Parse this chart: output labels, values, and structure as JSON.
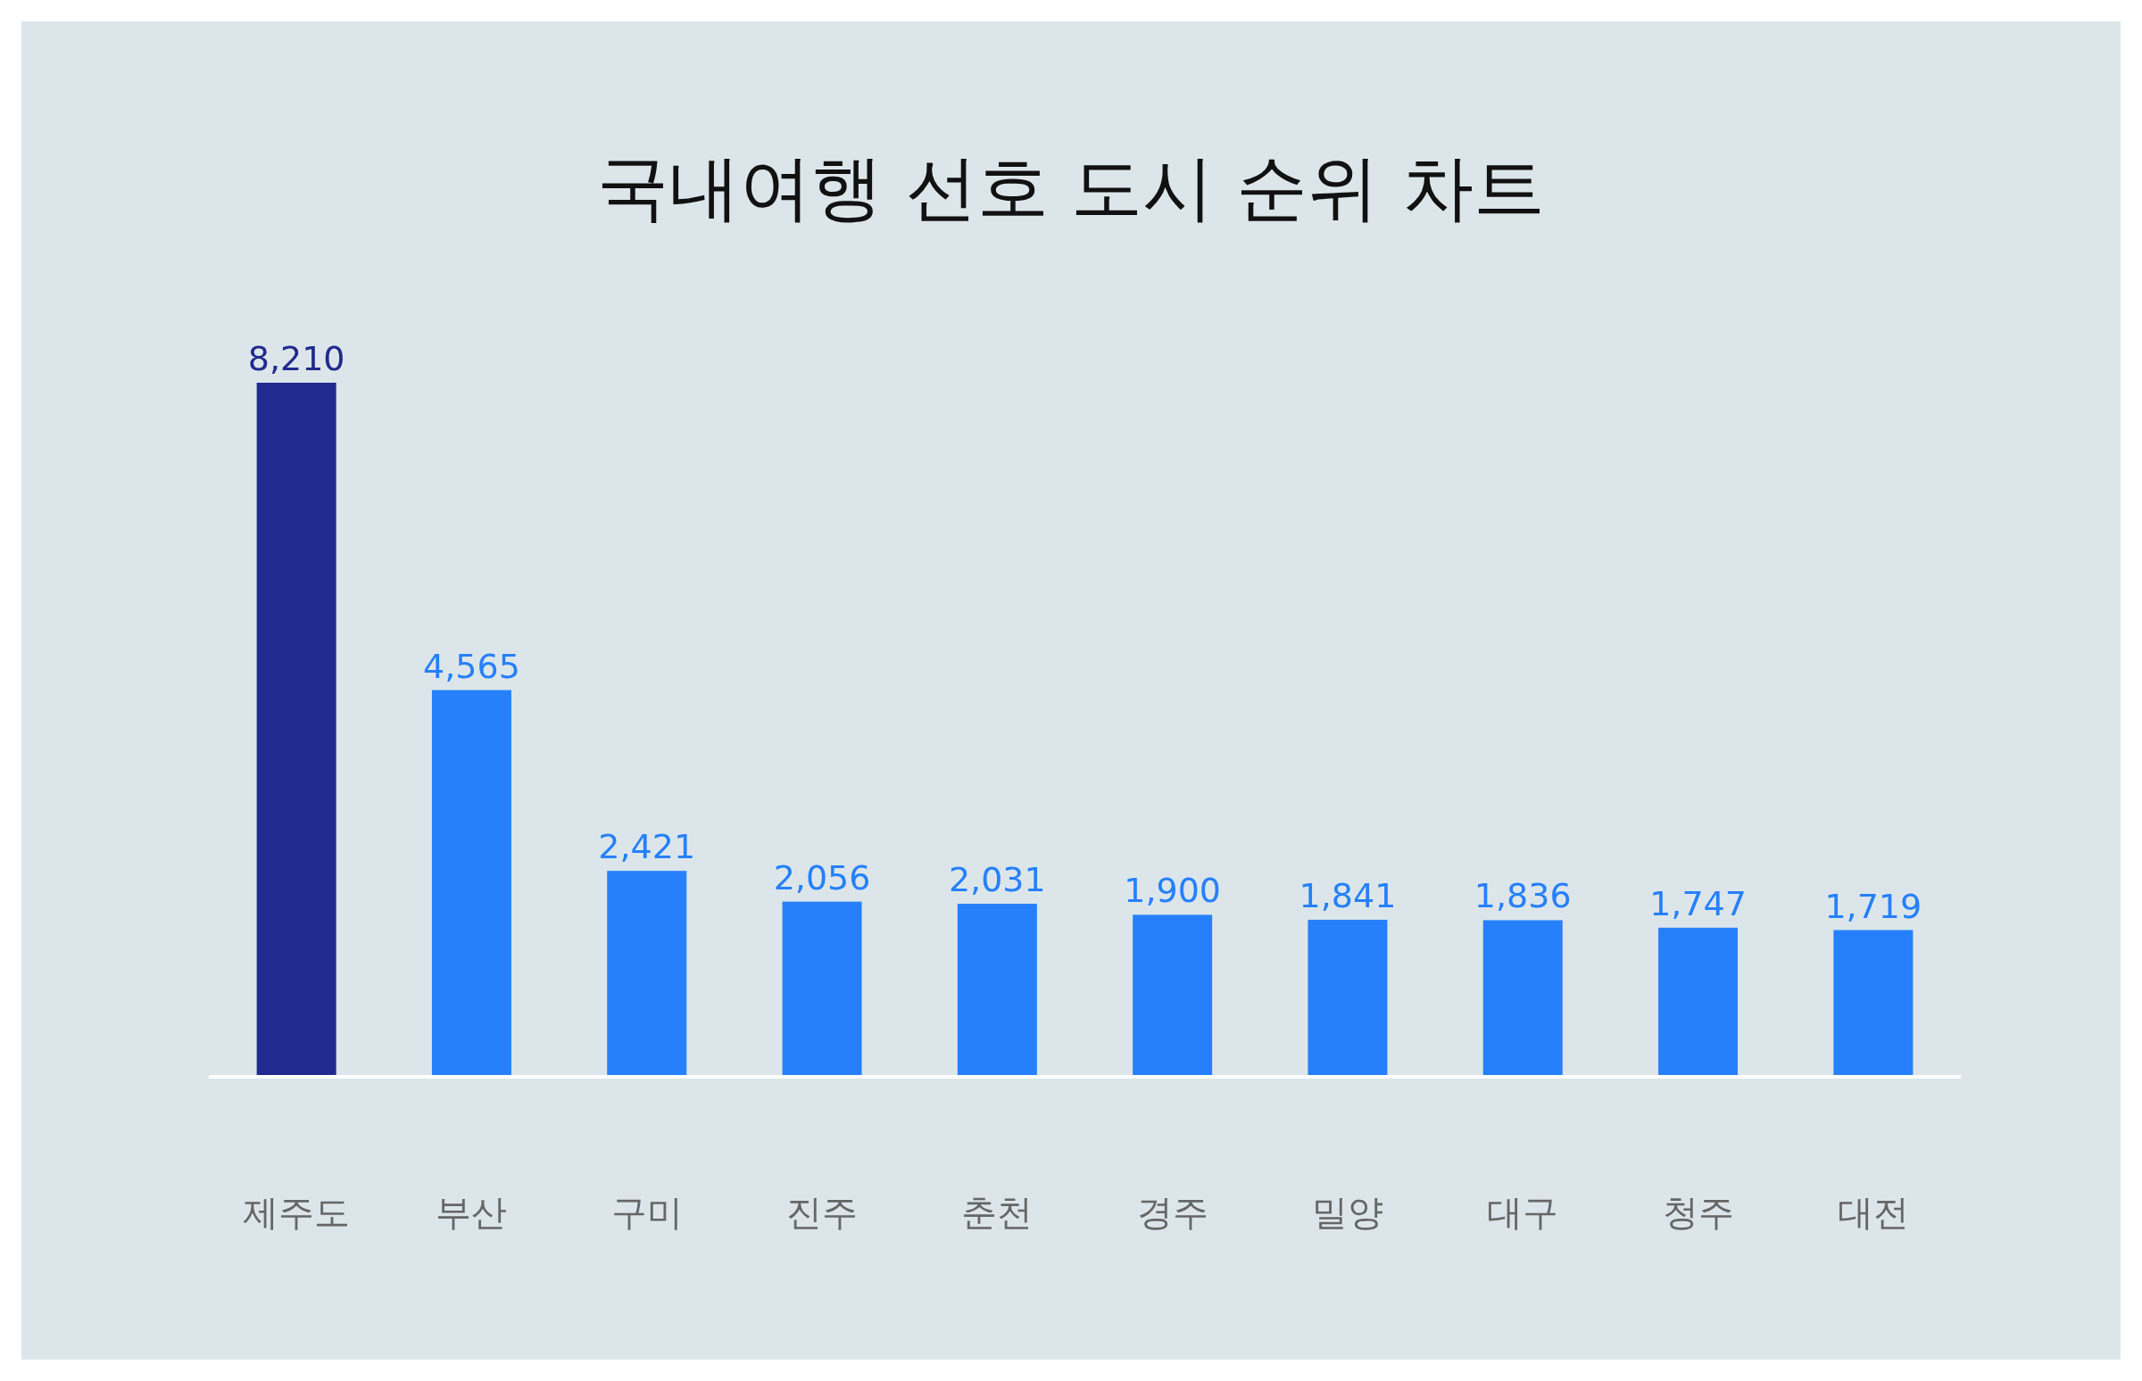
{
  "chart_data": {
    "type": "bar",
    "title": "국내여행 선호 도시 순위 차트",
    "categories": [
      "제주도",
      "부산",
      "구미",
      "진주",
      "춘천",
      "경주",
      "밀양",
      "대구",
      "청주",
      "대전"
    ],
    "values": [
      8210,
      4565,
      2421,
      2056,
      2031,
      1900,
      1841,
      1836,
      1747,
      1719
    ],
    "colors": [
      "#212a8f",
      "#2680fb",
      "#2680fb",
      "#2680fb",
      "#2680fb",
      "#2680fb",
      "#2680fb",
      "#2680fb",
      "#2680fb",
      "#2680fb"
    ],
    "value_labels": [
      "8,210",
      "4,565",
      "2,421",
      "2,056",
      "2,031",
      "1,900",
      "1,841",
      "1,836",
      "1,747",
      "1,719"
    ]
  }
}
